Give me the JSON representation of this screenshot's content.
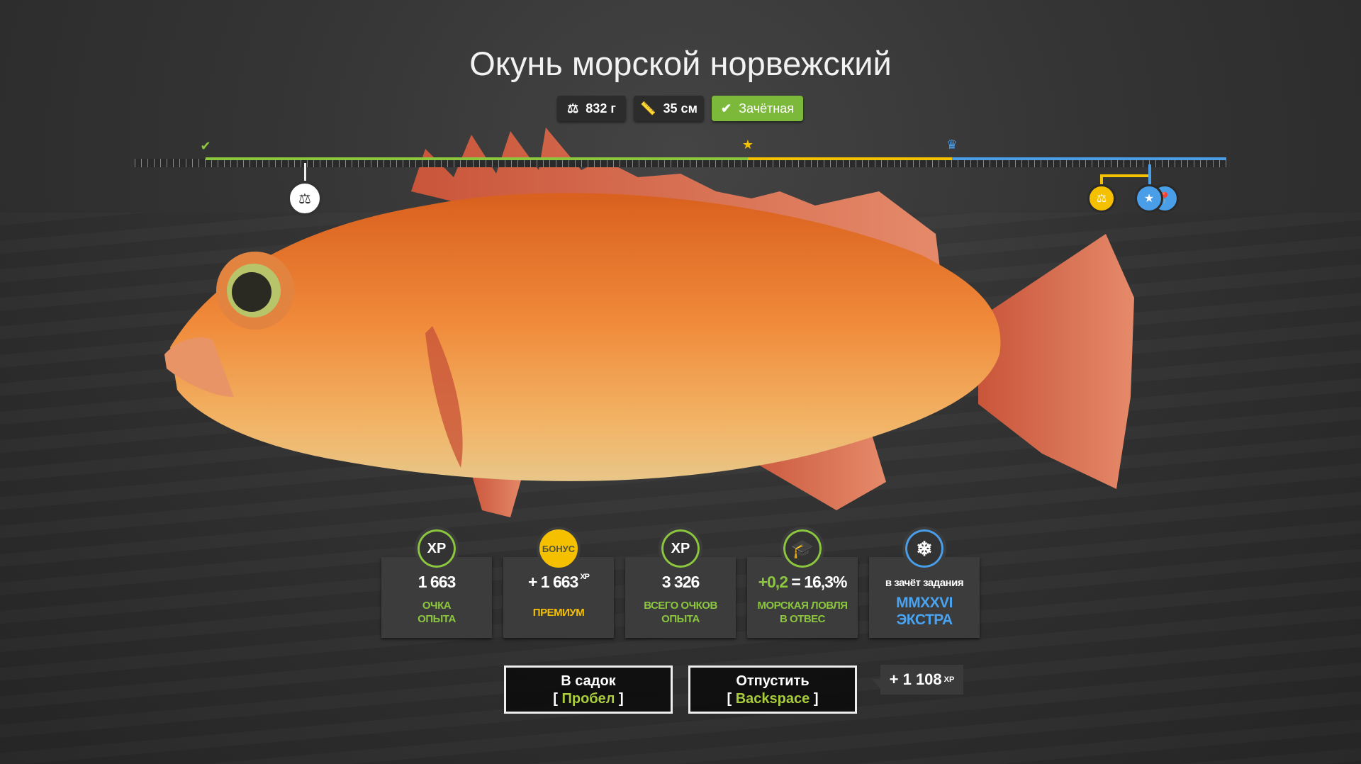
{
  "title": "Окунь морской норвежский",
  "badges": {
    "weight": "832 г",
    "length": "35 см",
    "status": "Зачётная"
  },
  "icons": {
    "weight": "weight-icon",
    "length": "ruler-icon",
    "status": "check-icon"
  },
  "colors": {
    "green": "#8cc63f",
    "yellow": "#f5c000",
    "blue": "#4a9ee8",
    "status_bg": "#7cb83a"
  },
  "ruler": {
    "markers": [
      "check-icon",
      "star-icon",
      "crown-icon"
    ]
  },
  "cards": [
    {
      "icon": "XP",
      "value": "1 663",
      "label1": "ОЧКА",
      "label2": "ОПЫТА"
    },
    {
      "icon": "БОНУС",
      "value": "+ 1 663",
      "sup": "XP",
      "label1": "ПРЕМИУМ"
    },
    {
      "icon": "XP",
      "value": "3 326",
      "label1": "ВСЕГО ОЧКОВ",
      "label2": "ОПЫТА"
    },
    {
      "icon": "graduation-cap-icon",
      "value_plus": "+0,2",
      "value_rest": " = 16,3%",
      "label1": "МОРСКАЯ ЛОВЛЯ",
      "label2": "В ОТВЕС"
    },
    {
      "icon": "snowflake-icon",
      "value": "в зачёт задания",
      "label1": "MMXXVI",
      "label2": "ЭКСТРА"
    }
  ],
  "buttons": {
    "keep": {
      "label": "В садок",
      "key": "Пробел"
    },
    "release": {
      "label": "Отпустить",
      "key": "Backspace"
    }
  },
  "release_xp": {
    "value": "+ 1 108",
    "unit": "XP"
  }
}
